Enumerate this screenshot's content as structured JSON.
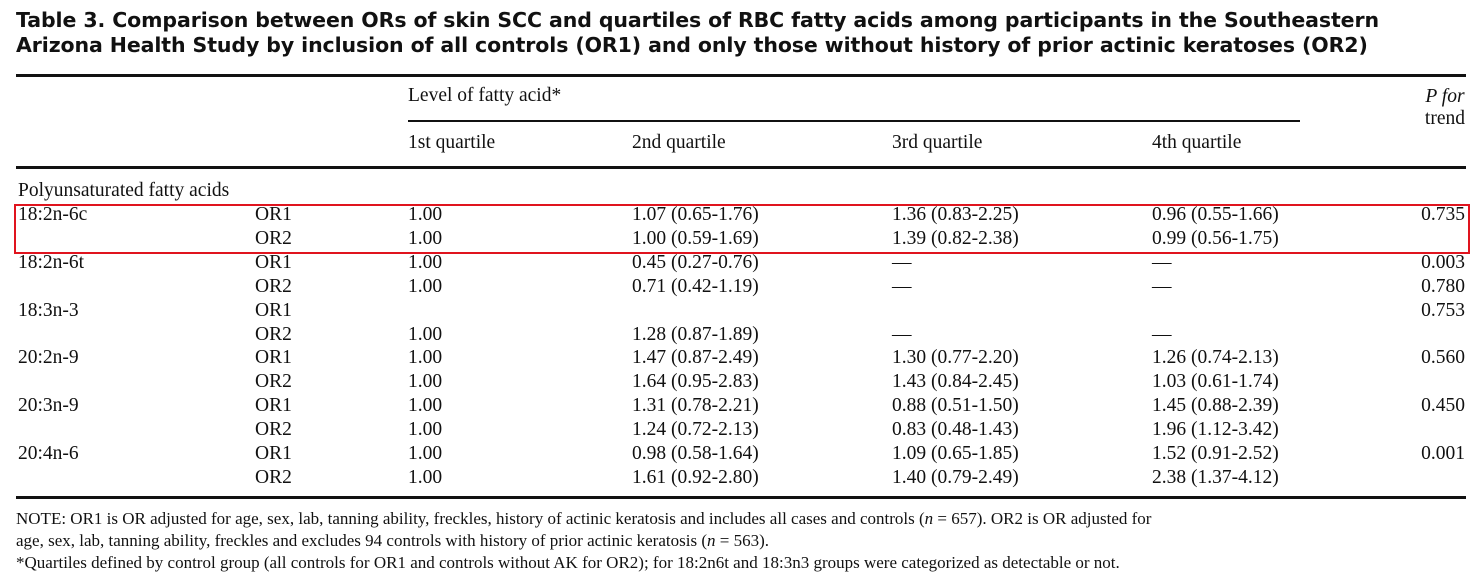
{
  "title": {
    "line1": "Table 3. Comparison between ORs of skin SCC and quartiles of RBC fatty acids among participants in the Southeastern",
    "line2": "Arizona Health Study by inclusion of all controls (OR1) and only those without history of prior actinic keratoses (OR2)"
  },
  "header": {
    "group": "Level of fatty acid*",
    "q1": "1st quartile",
    "q2": "2nd quartile",
    "q3": "3rd quartile",
    "q4": "4th quartile",
    "p_line1": "P for",
    "p_line2": "trend"
  },
  "section": "Polyunsaturated fatty acids",
  "highlight_color": "#e0141e",
  "rows": [
    {
      "acid": "18:2n-6c",
      "or": "OR1",
      "q1": "1.00",
      "q2": "1.07 (0.65-1.76)",
      "q3": "1.36 (0.83-2.25)",
      "q4": "0.96 (0.55-1.66)",
      "p": "0.735"
    },
    {
      "acid": "",
      "or": "OR2",
      "q1": "1.00",
      "q2": "1.00 (0.59-1.69)",
      "q3": "1.39 (0.82-2.38)",
      "q4": "0.99 (0.56-1.75)",
      "p": ""
    },
    {
      "acid": "18:2n-6t",
      "or": "OR1",
      "q1": "1.00",
      "q2": "0.45 (0.27-0.76)",
      "q3": "—",
      "q4": "—",
      "p": "0.003"
    },
    {
      "acid": "",
      "or": "OR2",
      "q1": "1.00",
      "q2": "0.71 (0.42-1.19)",
      "q3": "—",
      "q4": "—",
      "p": "0.780"
    },
    {
      "acid": "18:3n-3",
      "or": "OR1",
      "q1": "",
      "q2": "",
      "q3": "",
      "q4": "",
      "p": "0.753"
    },
    {
      "acid": "",
      "or": "OR2",
      "q1": "1.00",
      "q2": "1.28 (0.87-1.89)",
      "q3": "—",
      "q4": "—",
      "p": ""
    },
    {
      "acid": "20:2n-9",
      "or": "OR1",
      "q1": "1.00",
      "q2": "1.47 (0.87-2.49)",
      "q3": "1.30 (0.77-2.20)",
      "q4": "1.26 (0.74-2.13)",
      "p": "0.560"
    },
    {
      "acid": "",
      "or": "OR2",
      "q1": "1.00",
      "q2": "1.64 (0.95-2.83)",
      "q3": "1.43 (0.84-2.45)",
      "q4": "1.03 (0.61-1.74)",
      "p": ""
    },
    {
      "acid": "20:3n-9",
      "or": "OR1",
      "q1": "1.00",
      "q2": "1.31 (0.78-2.21)",
      "q3": "0.88 (0.51-1.50)",
      "q4": "1.45 (0.88-2.39)",
      "p": "0.450"
    },
    {
      "acid": "",
      "or": "OR2",
      "q1": "1.00",
      "q2": "1.24 (0.72-2.13)",
      "q3": "0.83 (0.48-1.43)",
      "q4": "1.96 (1.12-3.42)",
      "p": ""
    },
    {
      "acid": "20:4n-6",
      "or": "OR1",
      "q1": "1.00",
      "q2": "0.98 (0.58-1.64)",
      "q3": "1.09 (0.65-1.85)",
      "q4": "1.52 (0.91-2.52)",
      "p": "0.001"
    },
    {
      "acid": "",
      "or": "OR2",
      "q1": "1.00",
      "q2": "1.61 (0.92-2.80)",
      "q3": "1.40 (0.79-2.49)",
      "q4": "2.38 (1.37-4.12)",
      "p": ""
    }
  ],
  "notes": {
    "line1": "NOTE: OR1 is OR adjusted for age, sex, lab, tanning ability, freckles, history of actinic keratosis and includes all cases and controls (n = 657). OR2 is OR adjusted for",
    "line2": "age, sex, lab, tanning ability, freckles and excludes 94 controls with history of prior actinic keratosis (n = 563).",
    "footnote": "*Quartiles defined by control group (all controls for OR1 and controls without AK for OR2); for 18:2n6t and 18:3n3 groups were categorized as detectable or not."
  }
}
